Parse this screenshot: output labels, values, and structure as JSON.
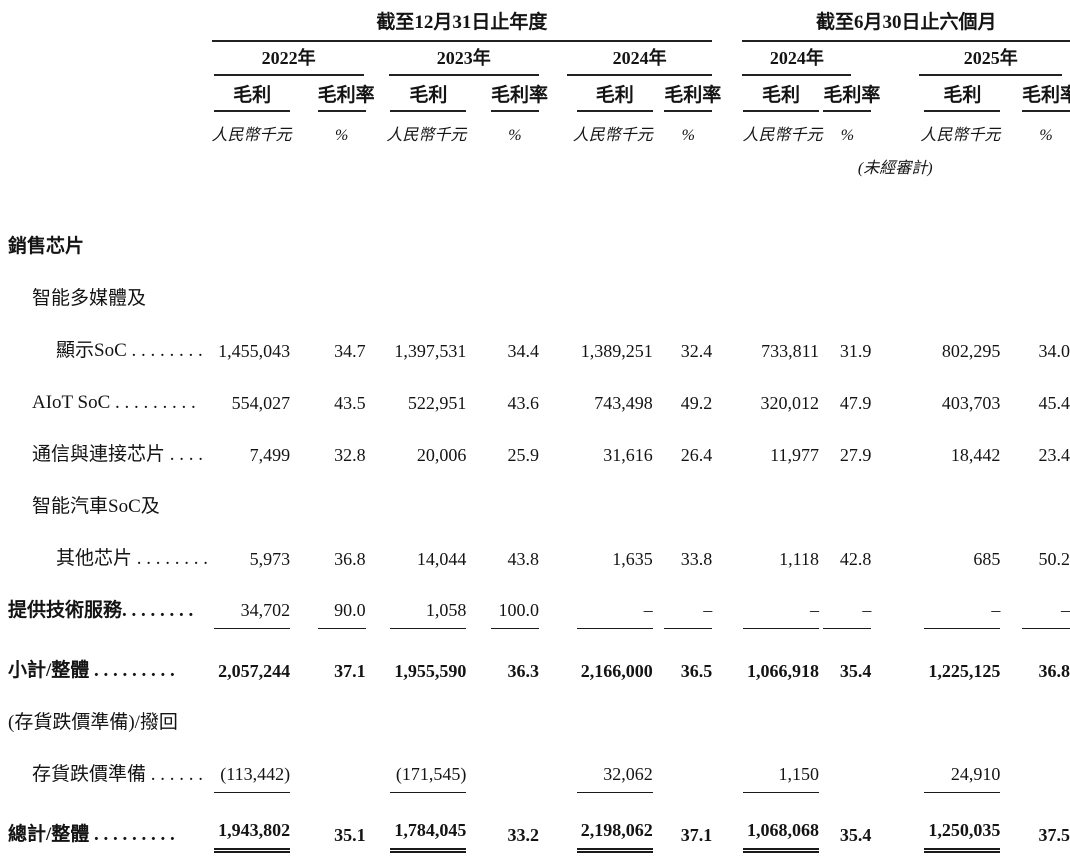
{
  "header": {
    "groups": [
      {
        "title": "截至12月31日止年度",
        "years": [
          "2022年",
          "2023年",
          "2024年"
        ]
      },
      {
        "title": "截至6月30日止六個月",
        "years": [
          "2024年",
          "2025年"
        ]
      }
    ],
    "col_labels": {
      "amount": "毛利",
      "ratio": "毛利率"
    },
    "unit_labels": {
      "amount": "人民幣千元",
      "ratio": "%"
    },
    "unaudited_note": "(未經審計)"
  },
  "rows": [
    {
      "label": "銷售芯片",
      "emphasis": true,
      "indent": 0,
      "cells": null
    },
    {
      "label": "智能多媒體及",
      "emphasis": false,
      "indent": 1,
      "cells": null
    },
    {
      "label": "顯示SoC . . . . . . . .",
      "emphasis": false,
      "indent": 2,
      "cells": [
        "1,455,043",
        "34.7",
        "1,397,531",
        "34.4",
        "1,389,251",
        "32.4",
        "733,811",
        "31.9",
        "802,295",
        "34.0"
      ]
    },
    {
      "label": "AIoT SoC . . . . . . . . .",
      "emphasis": false,
      "indent": 1,
      "cells": [
        "554,027",
        "43.5",
        "522,951",
        "43.6",
        "743,498",
        "49.2",
        "320,012",
        "47.9",
        "403,703",
        "45.4"
      ]
    },
    {
      "label": "通信與連接芯片 . . . .",
      "emphasis": false,
      "indent": 1,
      "cells": [
        "7,499",
        "32.8",
        "20,006",
        "25.9",
        "31,616",
        "26.4",
        "11,977",
        "27.9",
        "18,442",
        "23.4"
      ]
    },
    {
      "label": "智能汽車SoC及",
      "emphasis": false,
      "indent": 1,
      "cells": null
    },
    {
      "label": "其他芯片 . . . . . . . .",
      "emphasis": false,
      "indent": 2,
      "cells": [
        "5,973",
        "36.8",
        "14,044",
        "43.8",
        "1,635",
        "33.8",
        "1,118",
        "42.8",
        "685",
        "50.2"
      ]
    },
    {
      "label": "提供技術服務. . . . . . . .",
      "emphasis": true,
      "indent": 0,
      "rule": "single-all",
      "cells": [
        "34,702",
        "90.0",
        "1,058",
        "100.0",
        "–",
        "–",
        "–",
        "–",
        "–",
        "–"
      ]
    },
    {
      "label": "小計/整體 . . . . . . . . .",
      "emphasis": true,
      "indent": 0,
      "bold_values": true,
      "tall": true,
      "cells": [
        "2,057,244",
        "37.1",
        "1,955,590",
        "36.3",
        "2,166,000",
        "36.5",
        "1,066,918",
        "35.4",
        "1,225,125",
        "36.8"
      ]
    },
    {
      "label": "(存貨跌價準備)/撥回",
      "emphasis": false,
      "indent": 0,
      "cells": null
    },
    {
      "label": "存貨跌價準備 . . . . . .",
      "emphasis": false,
      "indent": 1,
      "rule": "single-amounts",
      "cells": [
        "(113,442)",
        "",
        "(171,545)",
        "",
        "32,062",
        "",
        "1,150",
        "",
        "24,910",
        ""
      ]
    },
    {
      "label": "總計/整體 . . . . . . . . .",
      "emphasis": true,
      "indent": 0,
      "bold_values": true,
      "tall": true,
      "rule": "double-amounts",
      "cells": [
        "1,943,802",
        "35.1",
        "1,784,045",
        "33.2",
        "2,198,062",
        "37.1",
        "1,068,068",
        "35.4",
        "1,250,035",
        "37.5"
      ]
    }
  ]
}
